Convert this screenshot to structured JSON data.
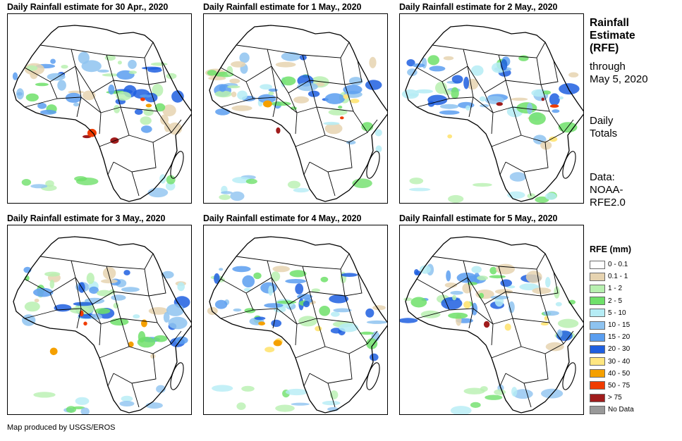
{
  "panels": [
    {
      "title": "Daily Rainfall estimate for 30 Apr., 2020"
    },
    {
      "title": "Daily Rainfall estimate for 1 May., 2020"
    },
    {
      "title": "Daily Rainfall estimate for 2 May., 2020"
    },
    {
      "title": "Daily Rainfall estimate for 3 May., 2020"
    },
    {
      "title": "Daily Rainfall estimate for 4 May., 2020"
    },
    {
      "title": "Daily Rainfall estimate for 5 May., 2020"
    }
  ],
  "side": {
    "title_line1": "Rainfall",
    "title_line2": "Estimate",
    "title_line3": "(RFE)",
    "through_line1": "through",
    "through_line2": "May 5, 2020",
    "totals_line1": "Daily",
    "totals_line2": "Totals",
    "data_line1": "Data:",
    "data_line2": "NOAA-",
    "data_line3": "RFE2.0"
  },
  "legend": {
    "title": "RFE (mm)",
    "items": [
      {
        "label": "0 - 0.1",
        "color": "#ffffff"
      },
      {
        "label": "0.1 - 1",
        "color": "#e6d3b0"
      },
      {
        "label": "1 - 2",
        "color": "#b8f0b0"
      },
      {
        "label": "2 - 5",
        "color": "#6fe06a"
      },
      {
        "label": "5 - 10",
        "color": "#b5ecf5"
      },
      {
        "label": "10 - 15",
        "color": "#8ec3f0"
      },
      {
        "label": "15 - 20",
        "color": "#5a9ef0"
      },
      {
        "label": "20 - 30",
        "color": "#1f5fe0"
      },
      {
        "label": "30 - 40",
        "color": "#ffe680"
      },
      {
        "label": "40 - 50",
        "color": "#f5a000"
      },
      {
        "label": "50 - 75",
        "color": "#f03c00"
      },
      {
        "label": "> 75",
        "color": "#a01c1c"
      },
      {
        "label": "No Data",
        "color": "#999999"
      }
    ]
  },
  "credit": "Map produced by USGS/EROS"
}
